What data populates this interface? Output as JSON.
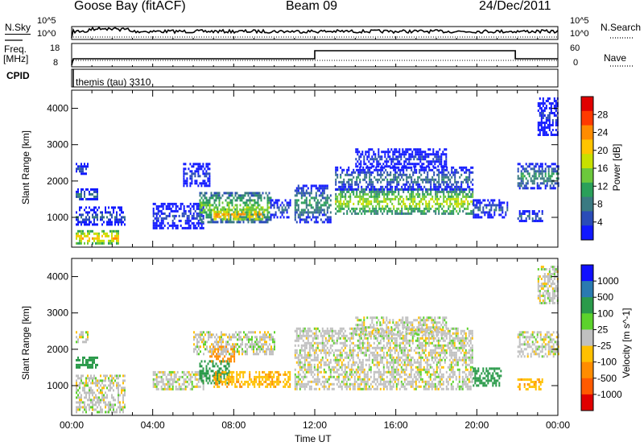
{
  "header": {
    "station": "Goose Bay (fitACF)",
    "beam": "Beam 09",
    "date": "24/Dec/2011"
  },
  "top_panels": {
    "nsky_label": "N.Sky",
    "nsky_ticks": [
      "10^5",
      "10^0"
    ],
    "nsearch_label": "N.Search",
    "nsearch_ticks": [
      "10^5",
      "10^0"
    ],
    "freq_label": "Freq.",
    "freq_unit": "[MHz]",
    "freq_ticks": [
      "18",
      "8"
    ],
    "nave_label": "Nave",
    "nave_ticks": [
      "60",
      "0"
    ],
    "cpid_label": "CPID",
    "cpid_value": "themis (tau) 3310"
  },
  "chart_data": [
    {
      "type": "heatmap",
      "title": "",
      "ylabel": "Slant Range [km]",
      "xlabel": "",
      "ylim": [
        180,
        4500
      ],
      "yticks": [
        "1000",
        "2000",
        "3000",
        "4000"
      ],
      "colorbar": {
        "label": "Power [dB]",
        "ticks": [
          "28",
          "24",
          "20",
          "16",
          "12",
          "8",
          "4"
        ],
        "colors": [
          "#e00000",
          "#ff3a00",
          "#ff8c00",
          "#ffc400",
          "#c8e000",
          "#6cc83c",
          "#2aa05a",
          "#3a7a82",
          "#2a4cb8",
          "#1018ff"
        ]
      },
      "regions": [
        {
          "t0": 0.2,
          "t1": 2.3,
          "r0": 300,
          "r1": 650,
          "power": 22
        },
        {
          "t0": 0.2,
          "t1": 2.6,
          "r0": 800,
          "r1": 1300,
          "power": 8
        },
        {
          "t0": 0.2,
          "t1": 1.3,
          "r0": 1500,
          "r1": 1800,
          "power": 10
        },
        {
          "t0": 0.2,
          "t1": 0.8,
          "r0": 2200,
          "r1": 2500,
          "power": 8
        },
        {
          "t0": 4.0,
          "t1": 6.5,
          "r0": 700,
          "r1": 1400,
          "power": 6
        },
        {
          "t0": 6.3,
          "t1": 9.8,
          "r0": 900,
          "r1": 1700,
          "power": 16
        },
        {
          "t0": 7.0,
          "t1": 9.5,
          "r0": 950,
          "r1": 1250,
          "power": 24
        },
        {
          "t0": 5.5,
          "t1": 6.8,
          "r0": 1900,
          "r1": 2500,
          "power": 6
        },
        {
          "t0": 9.8,
          "t1": 10.8,
          "r0": 1000,
          "r1": 1500,
          "power": 8
        },
        {
          "t0": 11.0,
          "t1": 12.8,
          "r0": 900,
          "r1": 1900,
          "power": 12
        },
        {
          "t0": 13.0,
          "t1": 19.8,
          "r0": 1100,
          "r1": 1800,
          "power": 18
        },
        {
          "t0": 13.0,
          "t1": 19.8,
          "r0": 1800,
          "r1": 2400,
          "power": 10
        },
        {
          "t0": 14.0,
          "t1": 18.5,
          "r0": 2400,
          "r1": 2900,
          "power": 6
        },
        {
          "t0": 19.8,
          "t1": 21.5,
          "r0": 1000,
          "r1": 1500,
          "power": 8
        },
        {
          "t0": 22.0,
          "t1": 24.0,
          "r0": 1800,
          "r1": 2500,
          "power": 12
        },
        {
          "t0": 22.0,
          "t1": 23.2,
          "r0": 900,
          "r1": 1200,
          "power": 10
        },
        {
          "t0": 23.0,
          "t1": 24.0,
          "r0": 3300,
          "r1": 4300,
          "power": 6
        }
      ]
    },
    {
      "type": "heatmap",
      "title": "",
      "ylabel": "Slant Range [km]",
      "xlabel": "Time UT",
      "ylim": [
        180,
        4500
      ],
      "yticks": [
        "1000",
        "2000",
        "3000",
        "4000"
      ],
      "xticks": [
        "00:00",
        "04:00",
        "08:00",
        "12:00",
        "16:00",
        "20:00",
        "00:00"
      ],
      "colorbar": {
        "label": "Velocity [m s^-1]",
        "ticks": [
          "1000",
          "500",
          "100",
          "25",
          "-25",
          "-100",
          "-500",
          "-1000"
        ],
        "colors": [
          "#1010ff",
          "#2a7ab0",
          "#2a9a4a",
          "#5cd22c",
          "#c0c0c0",
          "#ffc000",
          "#ff8c00",
          "#ff5a00",
          "#e00000"
        ]
      },
      "regions": [
        {
          "t0": 0.2,
          "t1": 2.6,
          "r0": 300,
          "r1": 1300,
          "velocity": 0
        },
        {
          "t0": 0.2,
          "t1": 1.3,
          "r0": 1500,
          "r1": 1800,
          "velocity": 150
        },
        {
          "t0": 0.2,
          "t1": 0.8,
          "r0": 2200,
          "r1": 2500,
          "velocity": 0
        },
        {
          "t0": 4.0,
          "t1": 6.5,
          "r0": 900,
          "r1": 1400,
          "velocity": 0
        },
        {
          "t0": 6.3,
          "t1": 7.8,
          "r0": 1100,
          "r1": 1700,
          "velocity": 150
        },
        {
          "t0": 7.0,
          "t1": 10.8,
          "r0": 950,
          "r1": 1400,
          "velocity": -80
        },
        {
          "t0": 6.8,
          "t1": 8.0,
          "r0": 1700,
          "r1": 2100,
          "velocity": -200
        },
        {
          "t0": 6.0,
          "t1": 10.0,
          "r0": 1900,
          "r1": 2500,
          "velocity": 0
        },
        {
          "t0": 11.0,
          "t1": 19.8,
          "r0": 900,
          "r1": 2600,
          "velocity": 0
        },
        {
          "t0": 14.0,
          "t1": 18.5,
          "r0": 2400,
          "r1": 2900,
          "velocity": 0
        },
        {
          "t0": 19.8,
          "t1": 21.2,
          "r0": 1000,
          "r1": 1500,
          "velocity": 150
        },
        {
          "t0": 22.0,
          "t1": 24.0,
          "r0": 1800,
          "r1": 2500,
          "velocity": 0
        },
        {
          "t0": 22.0,
          "t1": 23.2,
          "r0": 900,
          "r1": 1200,
          "velocity": -80
        },
        {
          "t0": 23.0,
          "t1": 24.0,
          "r0": 3300,
          "r1": 4300,
          "velocity": 0
        }
      ]
    }
  ]
}
